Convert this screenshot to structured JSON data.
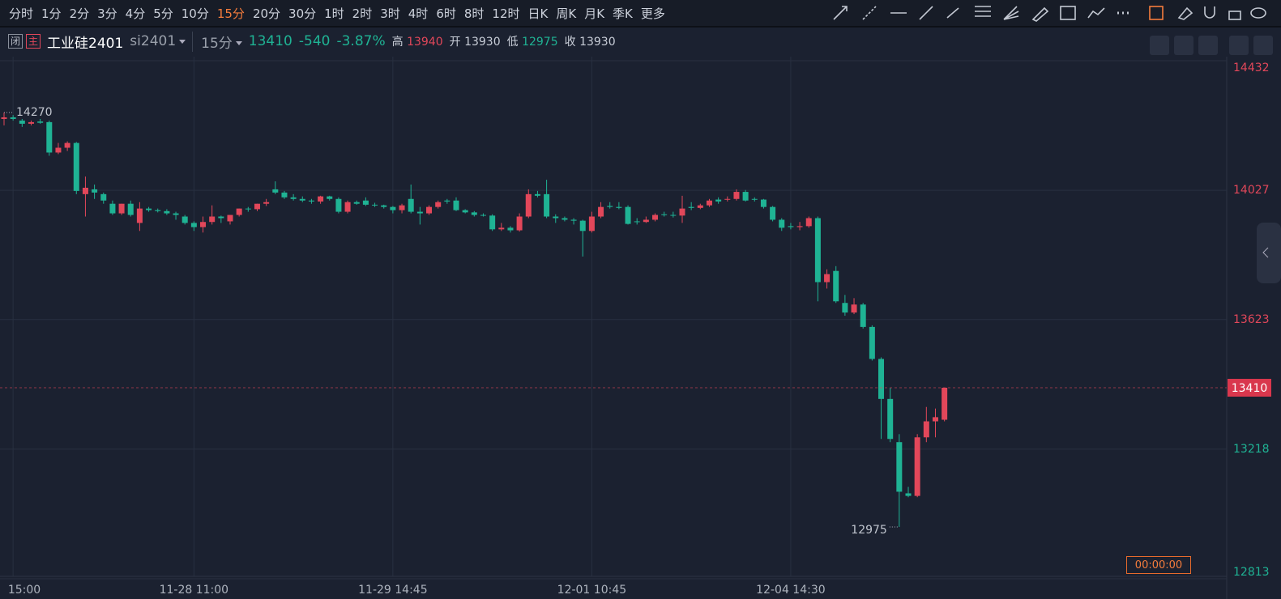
{
  "toolbar": {
    "periods": [
      "分时",
      "1分",
      "2分",
      "3分",
      "4分",
      "5分",
      "10分",
      "15分",
      "20分",
      "30分",
      "1时",
      "2时",
      "3时",
      "4时",
      "6时",
      "8时",
      "12时",
      "日K",
      "周K",
      "月K",
      "季K",
      "更多"
    ],
    "active": 7
  },
  "header": {
    "badges": [
      "闭",
      "主"
    ],
    "name": "工业硅2401",
    "code": "si2401",
    "period": "15分",
    "price": "13410",
    "change": "-540",
    "change_pct": "-3.87%",
    "high_label": "高",
    "high": "13940",
    "open_label": "开",
    "open": "13930",
    "low_label": "低",
    "low": "12975",
    "close_label": "收",
    "close": "13930"
  },
  "timer": "00:00:00",
  "chart": {
    "type": "candlestick",
    "up_color": "#e2475a",
    "down_color": "#1fb394",
    "ylim": [
      12813,
      14432
    ],
    "yticks": [
      12813,
      13218,
      13623,
      14027,
      14432
    ],
    "grid": true,
    "categories": [
      null,
      "15:00",
      null,
      null,
      null,
      null,
      null,
      null,
      null,
      null,
      null,
      null,
      null,
      null,
      null,
      null,
      null,
      null,
      null,
      null,
      null,
      "11-28 11:00",
      null,
      null,
      null,
      null,
      null,
      null,
      null,
      null,
      null,
      null,
      null,
      null,
      null,
      null,
      null,
      null,
      null,
      null,
      null,
      null,
      null,
      "11-29 14:45",
      null,
      null,
      null,
      null,
      null,
      null,
      null,
      null,
      null,
      null,
      null,
      null,
      null,
      null,
      null,
      null,
      null,
      null,
      null,
      null,
      null,
      "12-01 10:45",
      null,
      null,
      null,
      null,
      null,
      null,
      null,
      null,
      null,
      null,
      null,
      null,
      null,
      null,
      null,
      null,
      null,
      null,
      null,
      null,
      null,
      "12-04 14:30",
      null,
      null,
      null,
      null,
      null,
      null,
      null,
      null,
      null,
      null,
      null,
      null,
      null,
      null,
      null,
      null,
      null
    ],
    "ohlc": [
      [
        14250,
        14270,
        14230,
        14255
      ],
      [
        14255,
        14262,
        14245,
        14250
      ],
      [
        14245,
        14250,
        14225,
        14235
      ],
      [
        14235,
        14245,
        14230,
        14240
      ],
      [
        14242,
        14250,
        14235,
        14238
      ],
      [
        14240,
        14245,
        14135,
        14145
      ],
      [
        14145,
        14175,
        14140,
        14160
      ],
      [
        14160,
        14180,
        14150,
        14175
      ],
      [
        14175,
        14178,
        14015,
        14025
      ],
      [
        14015,
        14070,
        13945,
        14035
      ],
      [
        14030,
        14045,
        14000,
        14020
      ],
      [
        14015,
        14020,
        13985,
        13995
      ],
      [
        13985,
        13995,
        13950,
        13955
      ],
      [
        13955,
        13985,
        13950,
        13985
      ],
      [
        13985,
        13995,
        13945,
        13950
      ],
      [
        13925,
        13990,
        13900,
        13970
      ],
      [
        13970,
        13975,
        13960,
        13965
      ],
      [
        13965,
        13970,
        13958,
        13962
      ],
      [
        13962,
        13968,
        13950,
        13955
      ],
      [
        13955,
        13960,
        13935,
        13950
      ],
      [
        13945,
        13950,
        13920,
        13925
      ],
      [
        13925,
        13930,
        13900,
        13912
      ],
      [
        13912,
        13945,
        13895,
        13928
      ],
      [
        13928,
        13980,
        13920,
        13945
      ],
      [
        13945,
        13948,
        13925,
        13940
      ],
      [
        13930,
        13950,
        13920,
        13950
      ],
      [
        13950,
        13970,
        13945,
        13970
      ],
      [
        13970,
        13975,
        13960,
        13968
      ],
      [
        13968,
        13985,
        13962,
        13985
      ],
      [
        13985,
        14000,
        13978,
        13990
      ],
      [
        14030,
        14055,
        14015,
        14020
      ],
      [
        14020,
        14025,
        14000,
        14005
      ],
      [
        14005,
        14015,
        13995,
        14000
      ],
      [
        14000,
        14008,
        13990,
        13995
      ],
      [
        13995,
        14000,
        13985,
        13992
      ],
      [
        13992,
        14010,
        13985,
        14008
      ],
      [
        14008,
        14010,
        13995,
        14000
      ],
      [
        14000,
        14005,
        13955,
        13960
      ],
      [
        13960,
        13995,
        13955,
        13990
      ],
      [
        13990,
        13995,
        13982,
        13985
      ],
      [
        13995,
        14005,
        13978,
        13982
      ],
      [
        13982,
        13988,
        13975,
        13980
      ],
      [
        13980,
        13982,
        13970,
        13975
      ],
      [
        13975,
        13978,
        13955,
        13965
      ],
      [
        13965,
        13985,
        13955,
        13980
      ],
      [
        14000,
        14045,
        13955,
        13960
      ],
      [
        13960,
        13975,
        13920,
        13955
      ],
      [
        13955,
        13980,
        13950,
        13975
      ],
      [
        13975,
        13995,
        13970,
        13990
      ],
      [
        13995,
        14000,
        13985,
        13992
      ],
      [
        13995,
        14005,
        13962,
        13965
      ],
      [
        13965,
        13968,
        13955,
        13958
      ],
      [
        13958,
        13962,
        13945,
        13950
      ],
      [
        13950,
        13955,
        13945,
        13948
      ],
      [
        13948,
        13952,
        13900,
        13905
      ],
      [
        13905,
        13925,
        13900,
        13910
      ],
      [
        13910,
        13915,
        13895,
        13902
      ],
      [
        13902,
        13955,
        13898,
        13945
      ],
      [
        13945,
        14030,
        13940,
        14015
      ],
      [
        14015,
        14025,
        14005,
        14010
      ],
      [
        14015,
        14060,
        13940,
        13945
      ],
      [
        13945,
        13952,
        13925,
        13940
      ],
      [
        13940,
        13945,
        13930,
        13935
      ],
      [
        13935,
        13940,
        13920,
        13932
      ],
      [
        13932,
        13935,
        13820,
        13900
      ],
      [
        13900,
        13960,
        13895,
        13945
      ],
      [
        13945,
        13990,
        13940,
        13975
      ],
      [
        13978,
        13990,
        13970,
        13975
      ],
      [
        13975,
        13990,
        13968,
        13972
      ],
      [
        13975,
        13980,
        13920,
        13922
      ],
      [
        13930,
        13940,
        13920,
        13928
      ],
      [
        13928,
        13945,
        13925,
        13935
      ],
      [
        13935,
        13955,
        13930,
        13950
      ],
      [
        13952,
        13960,
        13945,
        13950
      ],
      [
        13950,
        13960,
        13942,
        13948
      ],
      [
        13948,
        14010,
        13925,
        13970
      ],
      [
        13975,
        13990,
        13965,
        13972
      ],
      [
        13972,
        13985,
        13968,
        13980
      ],
      [
        13980,
        14000,
        13975,
        13995
      ],
      [
        13998,
        14005,
        13985,
        13992
      ],
      [
        13998,
        14008,
        13992,
        14000
      ],
      [
        14000,
        14030,
        13995,
        14022
      ],
      [
        14022,
        14028,
        13992,
        13995
      ],
      [
        14000,
        14005,
        13992,
        13998
      ],
      [
        13998,
        14000,
        13970,
        13975
      ],
      [
        13975,
        13978,
        13930,
        13935
      ],
      [
        13935,
        13940,
        13900,
        13910
      ],
      [
        13915,
        13925,
        13905,
        13912
      ],
      [
        13912,
        13928,
        13902,
        13915
      ],
      [
        13915,
        13945,
        13910,
        13940
      ],
      [
        13940,
        13945,
        13680,
        13740
      ],
      [
        13740,
        13780,
        13720,
        13765
      ],
      [
        13775,
        13790,
        13675,
        13680
      ],
      [
        13675,
        13700,
        13635,
        13645
      ],
      [
        13645,
        13690,
        13640,
        13670
      ],
      [
        13670,
        13675,
        13595,
        13600
      ],
      [
        13600,
        13605,
        13495,
        13500
      ],
      [
        13500,
        13505,
        13250,
        13375
      ],
      [
        13375,
        13410,
        13240,
        13250
      ],
      [
        13240,
        13265,
        12975,
        13085
      ],
      [
        13080,
        13100,
        13068,
        13072
      ],
      [
        13072,
        13265,
        13068,
        13255
      ],
      [
        13255,
        13350,
        13240,
        13305
      ],
      [
        13305,
        13345,
        13255,
        13318
      ],
      [
        13310,
        13410,
        13305,
        13410
      ]
    ]
  }
}
